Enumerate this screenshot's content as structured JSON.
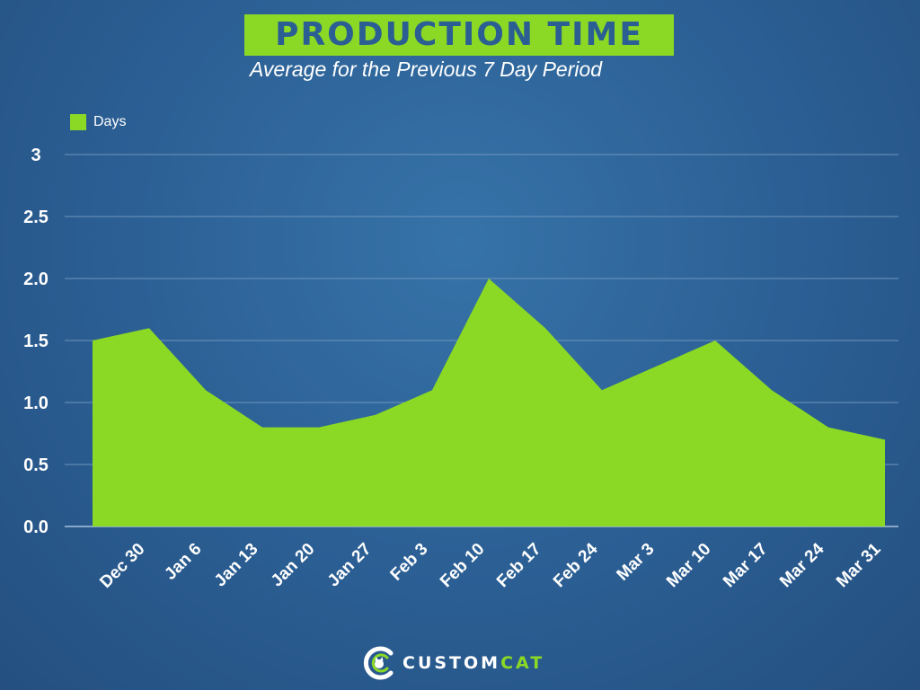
{
  "title": "PRODUCTION TIME",
  "subtitle": "Average for the Previous 7 Day Period",
  "logo": {
    "text_main": "CUSTOM",
    "text_accent": "CAT",
    "icon": "cat-c-logo-icon"
  },
  "colors": {
    "background": "#2b5e93",
    "area": "#8bd925",
    "title_box": "#8bd925",
    "title_text": "#2b5e93",
    "grid": "#6f95bd"
  },
  "chart_data": {
    "type": "area",
    "title": "PRODUCTION TIME",
    "subtitle": "Average for the Previous 7 Day Period",
    "categories": [
      "",
      "Dec 30",
      "Jan 6",
      "Jan 13",
      "Jan 20",
      "Jan 27",
      "Feb 3",
      "Feb 10",
      "Feb 17",
      "Feb 24",
      "Mar 3",
      "Mar 10",
      "Mar 17",
      "Mar 24",
      "Mar 31"
    ],
    "series": [
      {
        "name": "Days",
        "values": [
          1.5,
          1.6,
          1.1,
          0.8,
          0.8,
          0.9,
          1.1,
          2.0,
          1.6,
          1.1,
          1.3,
          1.5,
          1.1,
          0.8,
          0.7
        ]
      }
    ],
    "yticks": [
      "0.0",
      "0.5",
      "1.0",
      "1.5",
      "2.0",
      "2.5",
      "3"
    ],
    "ylim": [
      0,
      3
    ],
    "xlabel": "",
    "ylabel": "",
    "grid": true,
    "legend": "top-left"
  }
}
